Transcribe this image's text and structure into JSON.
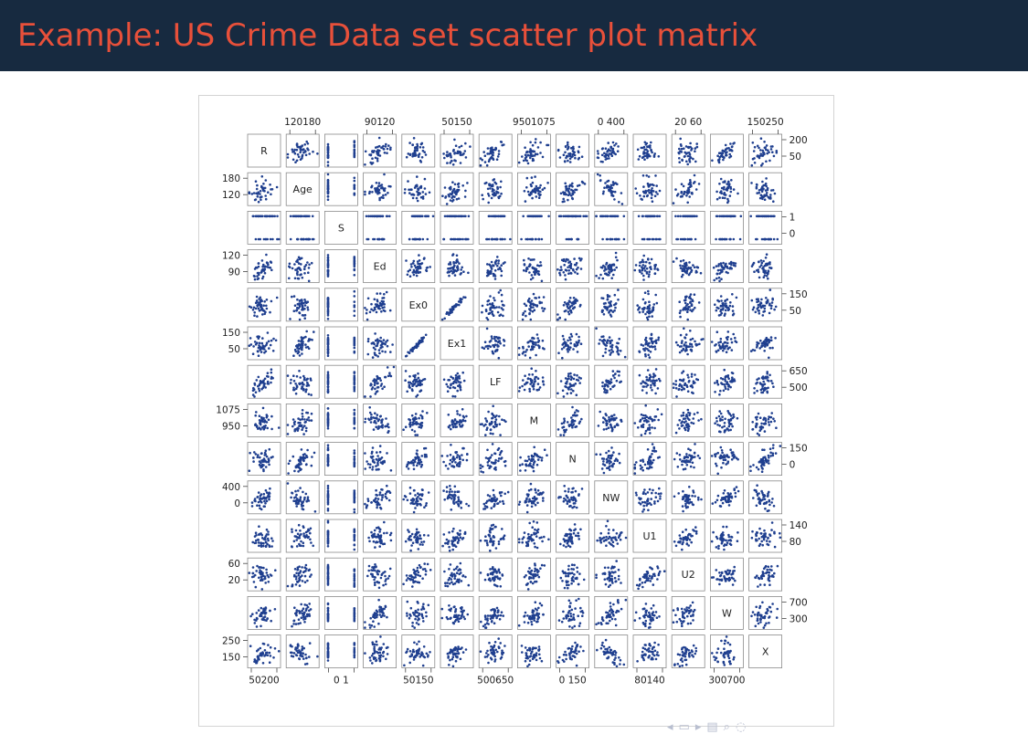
{
  "slide": {
    "title": "Example: US Crime Data set scatter plot matrix",
    "colors": {
      "header_bg": "#172a40",
      "title": "#e8503a",
      "points": "#1f3f8f",
      "frame": "#d4d4d4"
    },
    "nav_icons": [
      "left-arrow-icon",
      "section-icon",
      "right-arrow-icon",
      "subsection-icon",
      "search-icon",
      "zoom-icon"
    ]
  },
  "chart_data": {
    "type": "scatter",
    "kind": "scatter-plot-matrix",
    "variables": [
      "R",
      "Age",
      "S",
      "Ed",
      "Ex0",
      "Ex1",
      "LF",
      "M",
      "N",
      "NW",
      "U1",
      "U2",
      "W",
      "X"
    ],
    "axis_ticks": [
      {
        "variable": "R",
        "ticks": [
          "50",
          "200"
        ]
      },
      {
        "variable": "Age",
        "ticks": [
          "120",
          "180"
        ]
      },
      {
        "variable": "S",
        "ticks": [
          "0",
          "1"
        ]
      },
      {
        "variable": "Ed",
        "ticks": [
          "90",
          "120"
        ]
      },
      {
        "variable": "Ex0",
        "ticks": [
          "50",
          "150"
        ]
      },
      {
        "variable": "Ex1",
        "ticks": [
          "50",
          "150"
        ]
      },
      {
        "variable": "LF",
        "ticks": [
          "500",
          "650"
        ]
      },
      {
        "variable": "M",
        "ticks": [
          "950",
          "1075"
        ]
      },
      {
        "variable": "N",
        "ticks": [
          "0",
          "150"
        ]
      },
      {
        "variable": "NW",
        "ticks": [
          "0",
          "400"
        ]
      },
      {
        "variable": "U1",
        "ticks": [
          "80",
          "140"
        ]
      },
      {
        "variable": "U2",
        "ticks": [
          "20",
          "60"
        ]
      },
      {
        "variable": "W",
        "ticks": [
          "300",
          "700"
        ]
      },
      {
        "variable": "X",
        "ticks": [
          "150",
          "250"
        ]
      }
    ],
    "tick_labels": {
      "top": [
        "120180",
        "90120",
        "50150",
        "9501075",
        "0 400",
        "20 60",
        "150250"
      ],
      "bottom": [
        "50200",
        "0  1",
        "50150",
        "500650",
        "0  150",
        "80140",
        "300700"
      ],
      "left": [
        [
          "180",
          "120"
        ],
        [
          "120",
          "90"
        ],
        [
          "150",
          "50"
        ],
        [
          "1075",
          "950"
        ],
        [
          "400",
          "0"
        ],
        [
          "60",
          "20"
        ],
        [
          "250",
          "150"
        ]
      ],
      "right": [
        [
          "200",
          "50"
        ],
        [
          "1",
          "0"
        ],
        [
          "150",
          "50"
        ],
        [
          "650",
          "500"
        ],
        [
          "150",
          "0"
        ],
        [
          "140",
          "80"
        ],
        [
          "700",
          "300"
        ]
      ]
    },
    "grid": false,
    "legend": "none",
    "marker": "filled circle"
  }
}
